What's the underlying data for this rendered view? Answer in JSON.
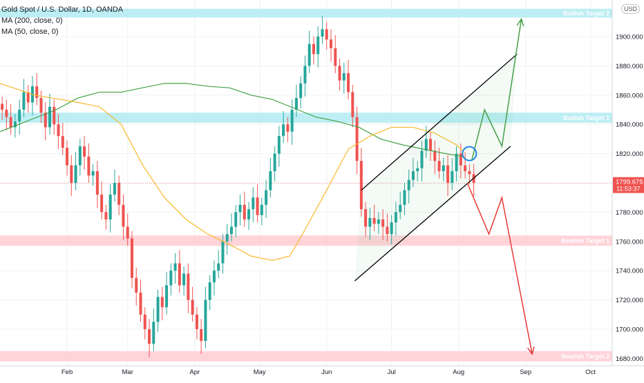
{
  "header": {
    "symbol_line": "Gold Spot / U.S. Dollar, 1D, OANDA",
    "ma200_label": "MA (200, close, 0)",
    "ma50_label": "MA (50, close, 0)",
    "currency": "USD"
  },
  "price_tag": {
    "price": "1799.675",
    "countdown": "11:53:37"
  },
  "chart_data": {
    "type": "candlestick",
    "title": "Gold Spot / U.S. Dollar, 1D, OANDA",
    "x_axis": {
      "ticks": [
        {
          "label": "Feb",
          "day": 35
        },
        {
          "label": "Mar",
          "day": 63
        },
        {
          "label": "Apr",
          "day": 94
        },
        {
          "label": "May",
          "day": 124
        },
        {
          "label": "Jun",
          "day": 155
        },
        {
          "label": "Jul",
          "day": 185
        },
        {
          "label": "Aug",
          "day": 216
        },
        {
          "label": "Sep",
          "day": 247
        },
        {
          "label": "Oct",
          "day": 277
        }
      ],
      "range": [
        4,
        287
      ]
    },
    "y_axis": {
      "ticks": [
        "1680.000",
        "1700.000",
        "1720.000",
        "1740.000",
        "1760.000",
        "1780.000",
        "1800.000",
        "1820.000",
        "1840.000",
        "1860.000",
        "1880.000",
        "1900.000"
      ],
      "range": [
        1675,
        1925
      ]
    },
    "zones": [
      {
        "label": "Bullish Target 2",
        "low": 1913,
        "high": 1919,
        "color": "#b2ebf2"
      },
      {
        "label": "Bullish Target 1",
        "low": 1841,
        "high": 1848,
        "color": "#b2ebf2"
      },
      {
        "label": "Bearish Target 1",
        "low": 1757,
        "high": 1764,
        "color": "#ffcdd2"
      },
      {
        "label": "Bearish Target 2",
        "low": 1678,
        "high": 1685,
        "color": "#ffcdd2"
      }
    ],
    "current_price": 1799.675,
    "close_series": [
      [
        5,
        1850
      ],
      [
        7,
        1845
      ],
      [
        9,
        1838
      ],
      [
        11,
        1842
      ],
      [
        13,
        1850
      ],
      [
        15,
        1862
      ],
      [
        17,
        1855
      ],
      [
        19,
        1866
      ],
      [
        21,
        1858
      ],
      [
        23,
        1848
      ],
      [
        25,
        1838
      ],
      [
        27,
        1852
      ],
      [
        29,
        1840
      ],
      [
        31,
        1832
      ],
      [
        33,
        1824
      ],
      [
        35,
        1812
      ],
      [
        37,
        1800
      ],
      [
        39,
        1812
      ],
      [
        41,
        1825
      ],
      [
        43,
        1818
      ],
      [
        45,
        1805
      ],
      [
        47,
        1808
      ],
      [
        49,
        1792
      ],
      [
        51,
        1780
      ],
      [
        53,
        1775
      ],
      [
        55,
        1792
      ],
      [
        57,
        1800
      ],
      [
        59,
        1785
      ],
      [
        61,
        1770
      ],
      [
        63,
        1762
      ],
      [
        65,
        1735
      ],
      [
        67,
        1725
      ],
      [
        69,
        1710
      ],
      [
        71,
        1700
      ],
      [
        73,
        1690
      ],
      [
        75,
        1705
      ],
      [
        77,
        1722
      ],
      [
        79,
        1715
      ],
      [
        81,
        1730
      ],
      [
        83,
        1740
      ],
      [
        85,
        1745
      ],
      [
        87,
        1730
      ],
      [
        89,
        1738
      ],
      [
        91,
        1720
      ],
      [
        93,
        1710
      ],
      [
        95,
        1700
      ],
      [
        97,
        1692
      ],
      [
        99,
        1720
      ],
      [
        101,
        1732
      ],
      [
        103,
        1740
      ],
      [
        105,
        1745
      ],
      [
        107,
        1760
      ],
      [
        109,
        1765
      ],
      [
        111,
        1770
      ],
      [
        113,
        1780
      ],
      [
        115,
        1785
      ],
      [
        117,
        1775
      ],
      [
        119,
        1782
      ],
      [
        121,
        1790
      ],
      [
        123,
        1778
      ],
      [
        125,
        1785
      ],
      [
        127,
        1795
      ],
      [
        129,
        1808
      ],
      [
        131,
        1820
      ],
      [
        133,
        1832
      ],
      [
        135,
        1840
      ],
      [
        137,
        1835
      ],
      [
        139,
        1850
      ],
      [
        141,
        1858
      ],
      [
        143,
        1868
      ],
      [
        145,
        1880
      ],
      [
        147,
        1895
      ],
      [
        149,
        1888
      ],
      [
        151,
        1900
      ],
      [
        153,
        1905
      ],
      [
        155,
        1898
      ],
      [
        157,
        1892
      ],
      [
        159,
        1880
      ],
      [
        161,
        1870
      ],
      [
        163,
        1875
      ],
      [
        165,
        1862
      ],
      [
        167,
        1845
      ],
      [
        169,
        1815
      ],
      [
        171,
        1782
      ],
      [
        173,
        1770
      ],
      [
        175,
        1776
      ],
      [
        177,
        1772
      ],
      [
        179,
        1775
      ],
      [
        181,
        1770
      ],
      [
        183,
        1765
      ],
      [
        185,
        1773
      ],
      [
        187,
        1780
      ],
      [
        189,
        1785
      ],
      [
        191,
        1795
      ],
      [
        193,
        1802
      ],
      [
        195,
        1808
      ],
      [
        197,
        1810
      ],
      [
        199,
        1822
      ],
      [
        201,
        1830
      ],
      [
        203,
        1822
      ],
      [
        205,
        1815
      ],
      [
        207,
        1808
      ],
      [
        209,
        1812
      ],
      [
        211,
        1800
      ],
      [
        213,
        1808
      ],
      [
        215,
        1820
      ],
      [
        217,
        1812
      ],
      [
        219,
        1808
      ],
      [
        221,
        1806
      ],
      [
        223,
        1800
      ]
    ],
    "ma200_series": [
      [
        4,
        1835
      ],
      [
        30,
        1850
      ],
      [
        40,
        1858
      ],
      [
        50,
        1862
      ],
      [
        60,
        1862
      ],
      [
        70,
        1865
      ],
      [
        80,
        1868
      ],
      [
        90,
        1868
      ],
      [
        100,
        1866
      ],
      [
        110,
        1865
      ],
      [
        120,
        1860
      ],
      [
        130,
        1857
      ],
      [
        140,
        1851
      ],
      [
        150,
        1845
      ],
      [
        160,
        1842
      ],
      [
        170,
        1838
      ],
      [
        180,
        1830
      ],
      [
        190,
        1826
      ],
      [
        200,
        1823
      ],
      [
        210,
        1820
      ],
      [
        218,
        1818
      ]
    ],
    "ma50_series": [
      [
        4,
        1868
      ],
      [
        20,
        1860
      ],
      [
        40,
        1855
      ],
      [
        50,
        1852
      ],
      [
        60,
        1840
      ],
      [
        70,
        1812
      ],
      [
        80,
        1790
      ],
      [
        90,
        1775
      ],
      [
        100,
        1765
      ],
      [
        110,
        1758
      ],
      [
        120,
        1750
      ],
      [
        130,
        1747
      ],
      [
        138,
        1750
      ],
      [
        145,
        1768
      ],
      [
        155,
        1795
      ],
      [
        165,
        1823
      ],
      [
        175,
        1832
      ],
      [
        185,
        1838
      ],
      [
        195,
        1838
      ],
      [
        205,
        1834
      ],
      [
        215,
        1826
      ],
      [
        218,
        1822
      ]
    ],
    "channel": {
      "upper": [
        [
          171,
          1795
        ],
        [
          243,
          1888
        ]
      ],
      "lower": [
        [
          168,
          1733
        ],
        [
          240,
          1825
        ]
      ]
    },
    "bullish_path": [
      [
        222,
        1815
      ],
      [
        228,
        1850
      ],
      [
        236,
        1825
      ],
      [
        245,
        1912
      ]
    ],
    "bearish_path": [
      [
        220,
        1800
      ],
      [
        230,
        1765
      ],
      [
        236,
        1790
      ],
      [
        250,
        1683
      ]
    ],
    "circle_marker": {
      "day": 221,
      "price": 1820
    },
    "grid": true
  }
}
